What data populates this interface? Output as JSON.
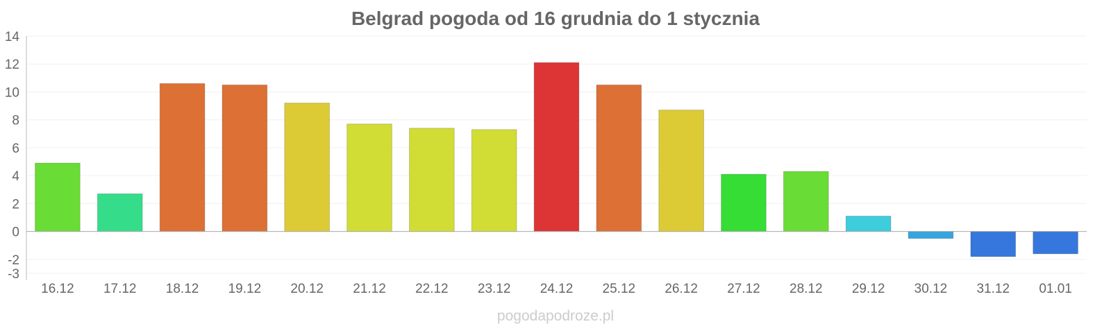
{
  "chart_data": {
    "type": "bar",
    "title": "Belgrad pogoda od 16 grudnia do 1 stycznia",
    "xlabel": "",
    "ylabel": "",
    "ylim": [
      -3,
      14
    ],
    "yticks": [
      14,
      12,
      10,
      8,
      6,
      4,
      2,
      0,
      -2,
      -3
    ],
    "grid": true,
    "legend": "none",
    "categories": [
      "16.12",
      "17.12",
      "18.12",
      "19.12",
      "20.12",
      "21.12",
      "22.12",
      "23.12",
      "24.12",
      "25.12",
      "26.12",
      "27.12",
      "28.12",
      "29.12",
      "30.12",
      "31.12",
      "01.01"
    ],
    "values": [
      4.9,
      2.7,
      10.6,
      10.5,
      9.2,
      7.7,
      7.4,
      7.3,
      12.1,
      10.5,
      8.7,
      4.1,
      4.3,
      1.1,
      -0.5,
      -1.8,
      -1.6
    ],
    "colors": [
      "#69dd35",
      "#35dd8a",
      "#dd7035",
      "#dd7035",
      "#ddcb35",
      "#d1dd35",
      "#d1dd35",
      "#d1dd35",
      "#dd3535",
      "#dd7035",
      "#ddcb35",
      "#35dd35",
      "#69dd35",
      "#3dcddd",
      "#35a5dd",
      "#3577dd",
      "#3577dd"
    ]
  },
  "watermark": "pogodapodroze.pl"
}
